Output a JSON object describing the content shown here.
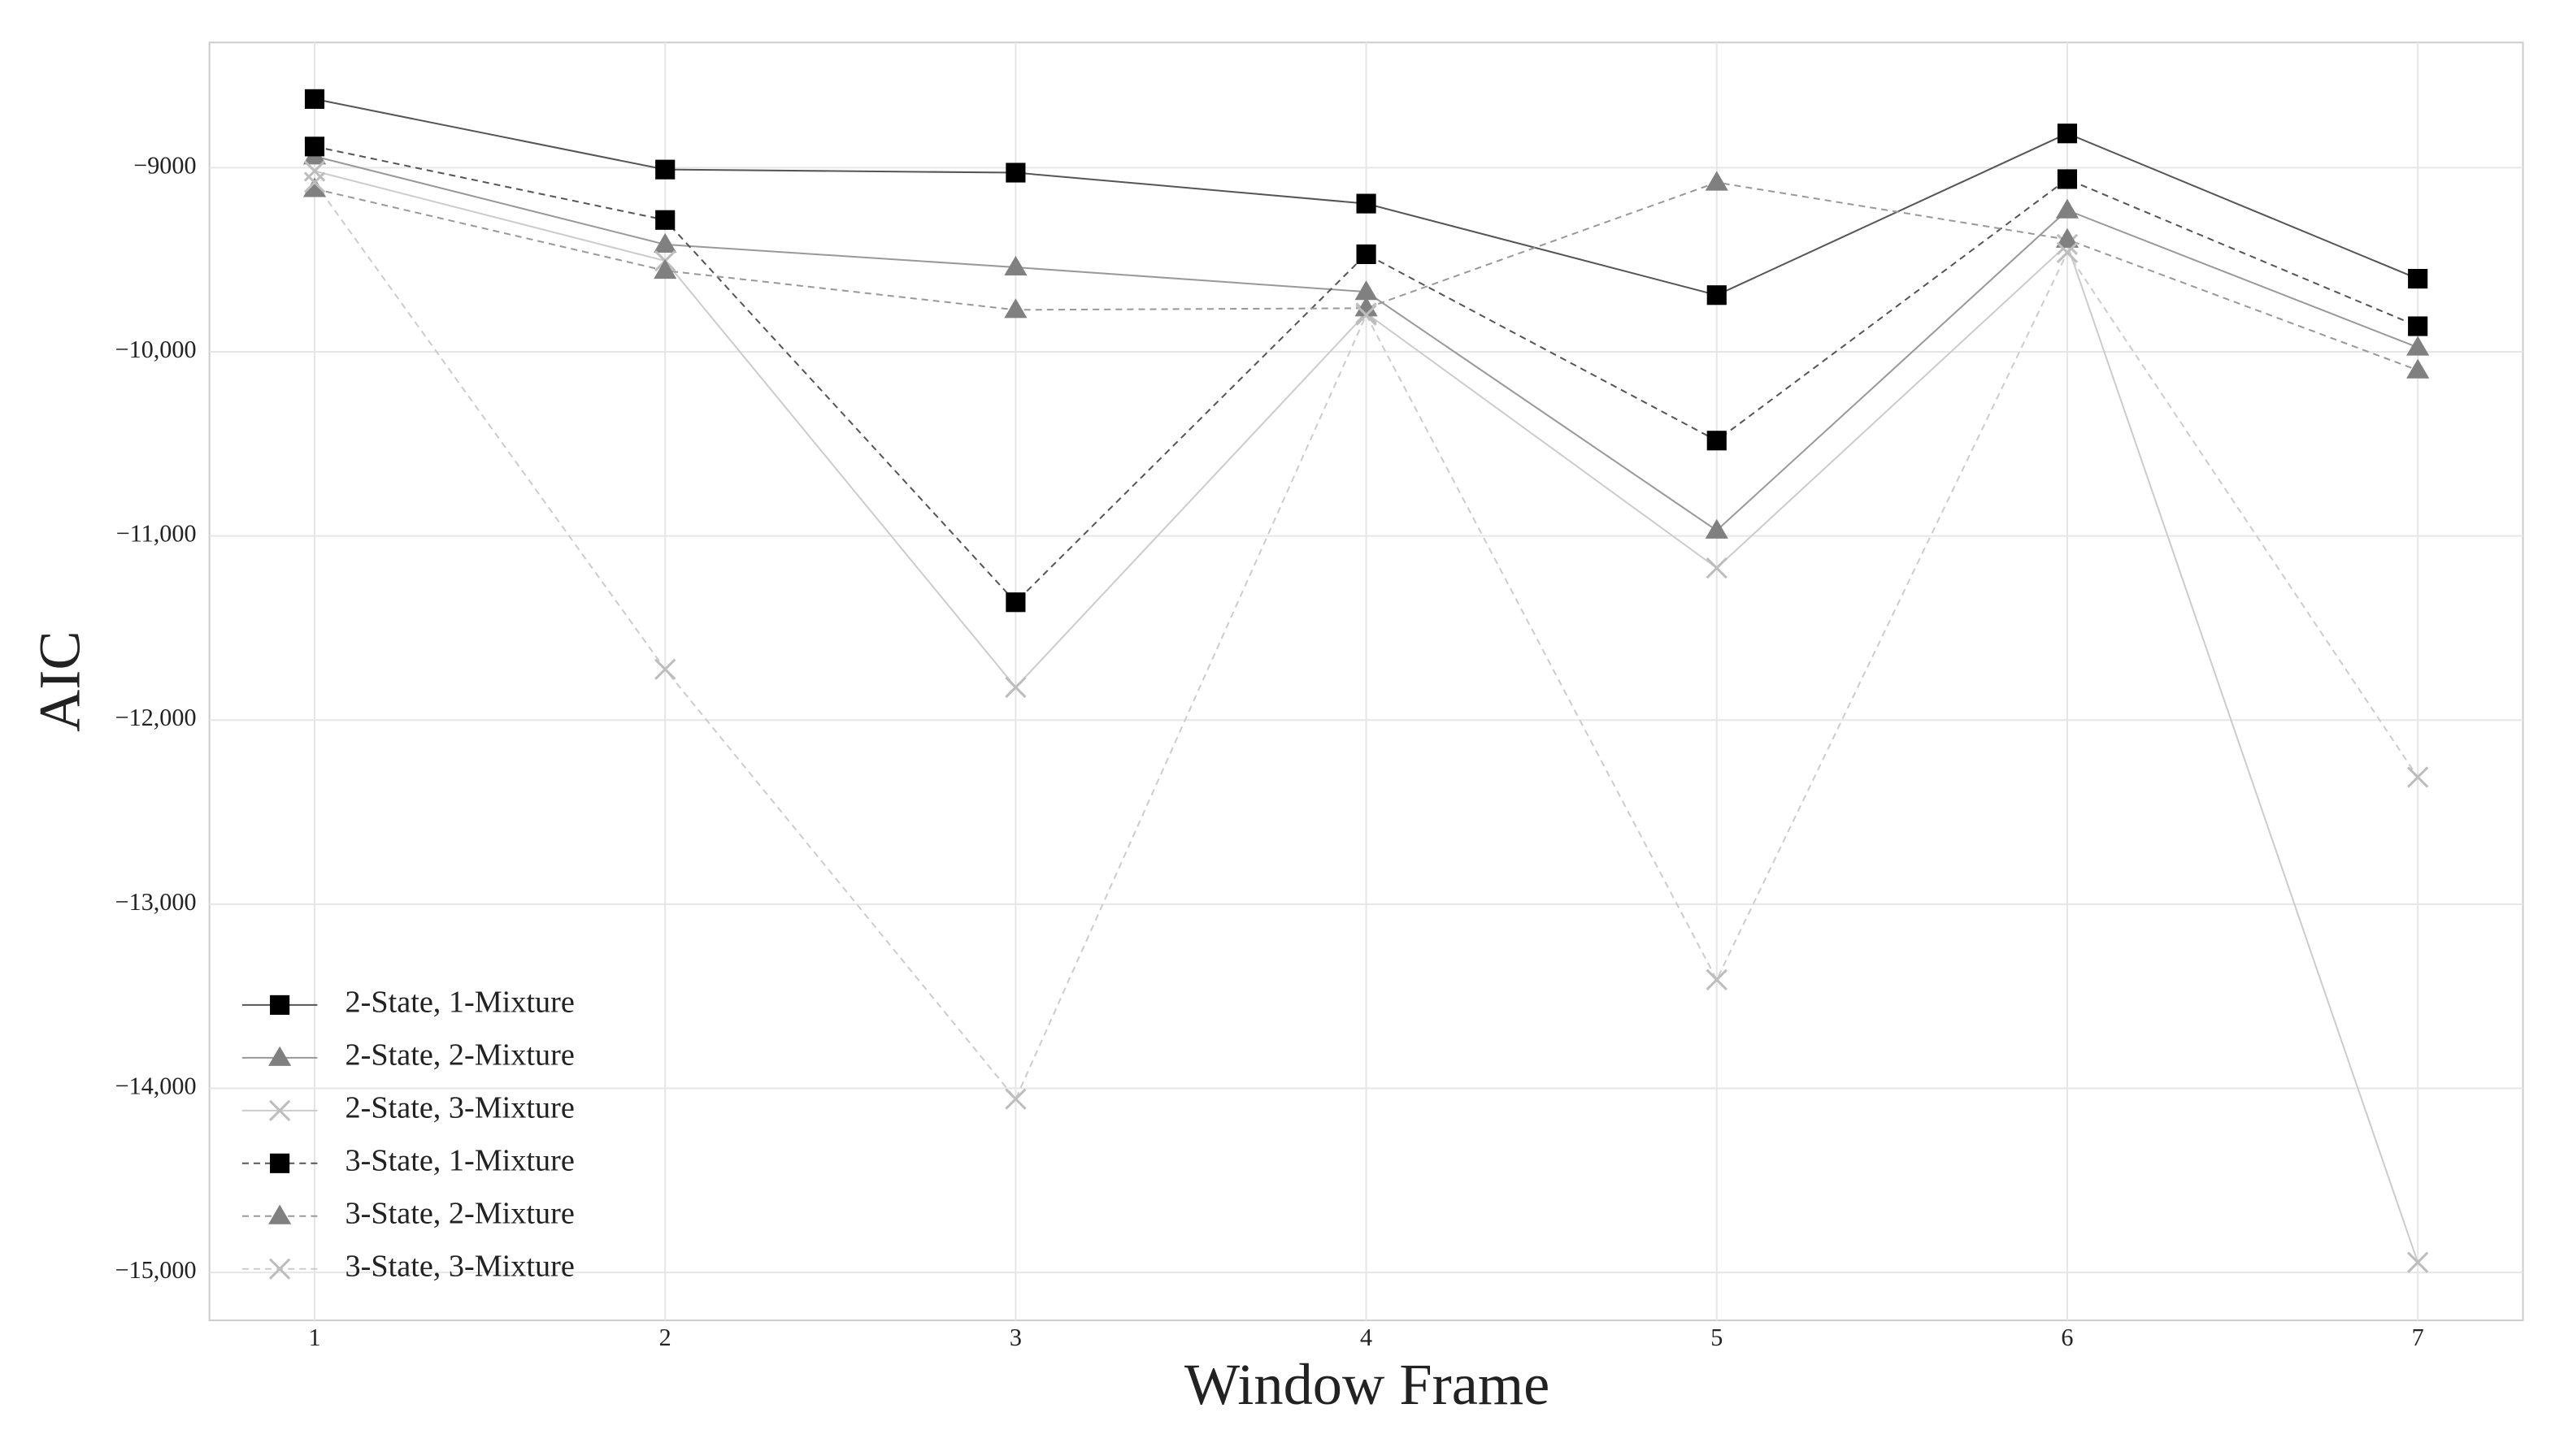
{
  "chart_data": {
    "type": "line",
    "x_label": "Window Frame",
    "y_label": "AIC",
    "x": [
      1,
      2,
      3,
      4,
      5,
      6,
      7
    ],
    "xlim": [
      0.7,
      7.3
    ],
    "xticks": [
      1,
      2,
      3,
      4,
      5,
      6,
      7
    ],
    "ylim": [
      -15260,
      -8320
    ],
    "yticks": [
      {
        "value": -9000,
        "label": "−9000"
      },
      {
        "value": -10000,
        "label": "−10,000"
      },
      {
        "value": -11000,
        "label": "−11,000"
      },
      {
        "value": -12000,
        "label": "−12,000"
      },
      {
        "value": -13000,
        "label": "−13,000"
      },
      {
        "value": -14000,
        "label": "−14,000"
      },
      {
        "value": -15000,
        "label": "−15,000"
      }
    ],
    "grid": true,
    "legend": "lower left",
    "series": [
      {
        "name": "2-State, 1-Mixture",
        "color": "#000000",
        "line_color": "#555555",
        "marker": "square",
        "dash": false,
        "values": [
          -8627,
          -9010,
          -9027,
          -9195,
          -9692,
          -8814,
          -9603
        ]
      },
      {
        "name": "2-State, 2-Mixture",
        "color": "#808080",
        "line_color": "#999999",
        "marker": "triangle",
        "dash": false,
        "values": [
          -8938,
          -9417,
          -9541,
          -9674,
          -10970,
          -9231,
          -9976
        ]
      },
      {
        "name": "2-State, 3-Mixture",
        "color": "#bdbdbd",
        "line_color": "#cccccc",
        "marker": "x",
        "dash": false,
        "values": [
          -9018,
          -9506,
          -11822,
          -9790,
          -11174,
          -9417,
          -14945
        ]
      },
      {
        "name": "3-State, 1-Mixture",
        "color": "#000000",
        "line_color": "#555555",
        "marker": "square",
        "dash": true,
        "values": [
          -8885,
          -9284,
          -11360,
          -9470,
          -10482,
          -9062,
          -9861
        ]
      },
      {
        "name": "3-State, 2-Mixture",
        "color": "#808080",
        "line_color": "#999999",
        "marker": "triangle",
        "dash": true,
        "values": [
          -9115,
          -9559,
          -9772,
          -9763,
          -9080,
          -9390,
          -10100
        ]
      },
      {
        "name": "3-State, 3-Mixture",
        "color": "#bdbdbd",
        "line_color": "#cccccc",
        "marker": "x",
        "dash": true,
        "values": [
          -9080,
          -11724,
          -14058,
          -9800,
          -13410,
          -9461,
          -12310
        ]
      }
    ]
  }
}
